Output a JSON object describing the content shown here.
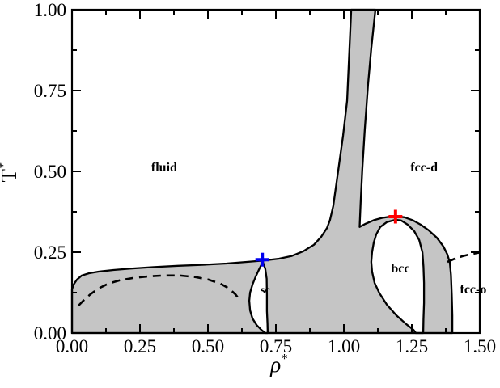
{
  "figure": {
    "background": "#ffffff",
    "title": ""
  },
  "chart_data": {
    "type": "area",
    "subtype": "phase-diagram",
    "title": "",
    "xlabel": "ρ",
    "xlabel_sup": "*",
    "ylabel": "T",
    "ylabel_sup": "*",
    "xlim": [
      0,
      1.5
    ],
    "ylim": [
      0,
      1.0
    ],
    "grid": false,
    "x_major_ticks": [
      0,
      0.25,
      0.5,
      0.75,
      1.0,
      1.25,
      1.5
    ],
    "x_tick_labels": [
      "0.00",
      "0.25",
      "0.50",
      "0.75",
      "1.00",
      "1.25",
      "1.50"
    ],
    "x_minor_ticks": [
      0.125,
      0.375,
      0.625,
      0.875,
      1.125,
      1.375
    ],
    "y_major_ticks": [
      0,
      0.25,
      0.5,
      0.75,
      1.0
    ],
    "y_tick_labels": [
      "0.00",
      "0.25",
      "0.50",
      "0.75",
      "1.00"
    ],
    "y_minor_ticks": [
      0.125,
      0.375,
      0.625,
      0.875
    ],
    "colors": {
      "coexistence_fill": "#c5c5c5",
      "boundary": "#000000",
      "dashed": "#000000",
      "frame": "#000000",
      "marker_sc": "#0000ee",
      "marker_bcc": "#ff0000"
    },
    "phase_labels": [
      {
        "text": "fluid",
        "rho": 0.339,
        "T": 0.513,
        "size": 16
      },
      {
        "text": "fcc-d",
        "rho": 1.295,
        "T": 0.513,
        "size": 16
      },
      {
        "text": "bcc",
        "rho": 1.208,
        "T": 0.2,
        "size": 16
      },
      {
        "text": "sc",
        "rho": 0.711,
        "T": 0.135,
        "size": 14
      },
      {
        "text": "fcc-o",
        "rho": 1.476,
        "T": 0.135,
        "size": 16
      }
    ],
    "markers": [
      {
        "name": "sc-triple-point-marker",
        "shape": "plus",
        "color_key": "marker_sc",
        "rho": 0.7,
        "T": 0.227
      },
      {
        "name": "bcc-triple-point-marker",
        "shape": "plus",
        "color_key": "marker_bcc",
        "rho": 1.19,
        "T": 0.36
      }
    ],
    "region_outline": [
      [
        0,
        0
      ],
      [
        0,
        0.135
      ],
      [
        0.006,
        0.15
      ],
      [
        0.018,
        0.165
      ],
      [
        0.036,
        0.178
      ],
      [
        0.063,
        0.185
      ],
      [
        0.098,
        0.19
      ],
      [
        0.152,
        0.195
      ],
      [
        0.211,
        0.199
      ],
      [
        0.301,
        0.204
      ],
      [
        0.39,
        0.208
      ],
      [
        0.479,
        0.211
      ],
      [
        0.568,
        0.215
      ],
      [
        0.643,
        0.22
      ],
      [
        0.702,
        0.224
      ],
      [
        0.762,
        0.23
      ],
      [
        0.807,
        0.238
      ],
      [
        0.851,
        0.253
      ],
      [
        0.89,
        0.273
      ],
      [
        0.917,
        0.298
      ],
      [
        0.938,
        0.325
      ],
      [
        0.949,
        0.35
      ],
      [
        0.961,
        0.393
      ],
      [
        0.979,
        0.5
      ],
      [
        0.997,
        0.61
      ],
      [
        1.012,
        0.718
      ],
      [
        1.027,
        1.0
      ],
      [
        1.116,
        1.0
      ],
      [
        1.101,
        0.88
      ],
      [
        1.089,
        0.768
      ],
      [
        1.077,
        0.63
      ],
      [
        1.068,
        0.505
      ],
      [
        1.062,
        0.405
      ],
      [
        1.058,
        0.328
      ],
      [
        1.08,
        0.338
      ],
      [
        1.11,
        0.349
      ],
      [
        1.14,
        0.356
      ],
      [
        1.17,
        0.36
      ],
      [
        1.193,
        0.361
      ],
      [
        1.223,
        0.358
      ],
      [
        1.253,
        0.349
      ],
      [
        1.283,
        0.335
      ],
      [
        1.312,
        0.318
      ],
      [
        1.342,
        0.295
      ],
      [
        1.366,
        0.268
      ],
      [
        1.381,
        0.243
      ],
      [
        1.39,
        0.218
      ],
      [
        1.394,
        0.18
      ],
      [
        1.397,
        0.118
      ],
      [
        1.399,
        0.055
      ],
      [
        1.399,
        0
      ]
    ],
    "holes": {
      "sc": [
        [
          0.702,
          0.22
        ],
        [
          0.69,
          0.2
        ],
        [
          0.676,
          0.175
        ],
        [
          0.664,
          0.15
        ],
        [
          0.655,
          0.125
        ],
        [
          0.652,
          0.1
        ],
        [
          0.655,
          0.07
        ],
        [
          0.664,
          0.045
        ],
        [
          0.679,
          0.025
        ],
        [
          0.696,
          0.01
        ],
        [
          0.711,
          0
        ],
        [
          0.72,
          0
        ],
        [
          0.719,
          0.03
        ],
        [
          0.717,
          0.068
        ],
        [
          0.717,
          0.118
        ],
        [
          0.716,
          0.168
        ],
        [
          0.711,
          0.198
        ]
      ],
      "bcc": [
        [
          1.19,
          0.35
        ],
        [
          1.158,
          0.343
        ],
        [
          1.134,
          0.328
        ],
        [
          1.119,
          0.305
        ],
        [
          1.11,
          0.28
        ],
        [
          1.104,
          0.25
        ],
        [
          1.101,
          0.22
        ],
        [
          1.104,
          0.19
        ],
        [
          1.113,
          0.155
        ],
        [
          1.131,
          0.123
        ],
        [
          1.158,
          0.088
        ],
        [
          1.193,
          0.055
        ],
        [
          1.229,
          0.028
        ],
        [
          1.256,
          0.01
        ],
        [
          1.265,
          0
        ],
        [
          1.292,
          0
        ],
        [
          1.293,
          0.043
        ],
        [
          1.295,
          0.093
        ],
        [
          1.295,
          0.155
        ],
        [
          1.293,
          0.205
        ],
        [
          1.289,
          0.25
        ],
        [
          1.277,
          0.288
        ],
        [
          1.259,
          0.315
        ],
        [
          1.235,
          0.335
        ],
        [
          1.211,
          0.348
        ]
      ]
    },
    "dashed_curves": [
      {
        "name": "metastable-fluid-coexistence-curve",
        "points": [
          [
            0.024,
            0.085
          ],
          [
            0.045,
            0.103
          ],
          [
            0.068,
            0.12
          ],
          [
            0.098,
            0.138
          ],
          [
            0.134,
            0.153
          ],
          [
            0.176,
            0.163
          ],
          [
            0.223,
            0.17
          ],
          [
            0.277,
            0.175
          ],
          [
            0.336,
            0.178
          ],
          [
            0.396,
            0.178
          ],
          [
            0.455,
            0.173
          ],
          [
            0.503,
            0.165
          ],
          [
            0.545,
            0.153
          ],
          [
            0.577,
            0.138
          ],
          [
            0.601,
            0.12
          ],
          [
            0.616,
            0.103
          ]
        ]
      },
      {
        "name": "fccd-fcco-boundary-curve",
        "points": [
          [
            1.381,
            0.22
          ],
          [
            1.408,
            0.23
          ],
          [
            1.438,
            0.238
          ],
          [
            1.467,
            0.244
          ],
          [
            1.5,
            0.249
          ]
        ]
      }
    ]
  }
}
